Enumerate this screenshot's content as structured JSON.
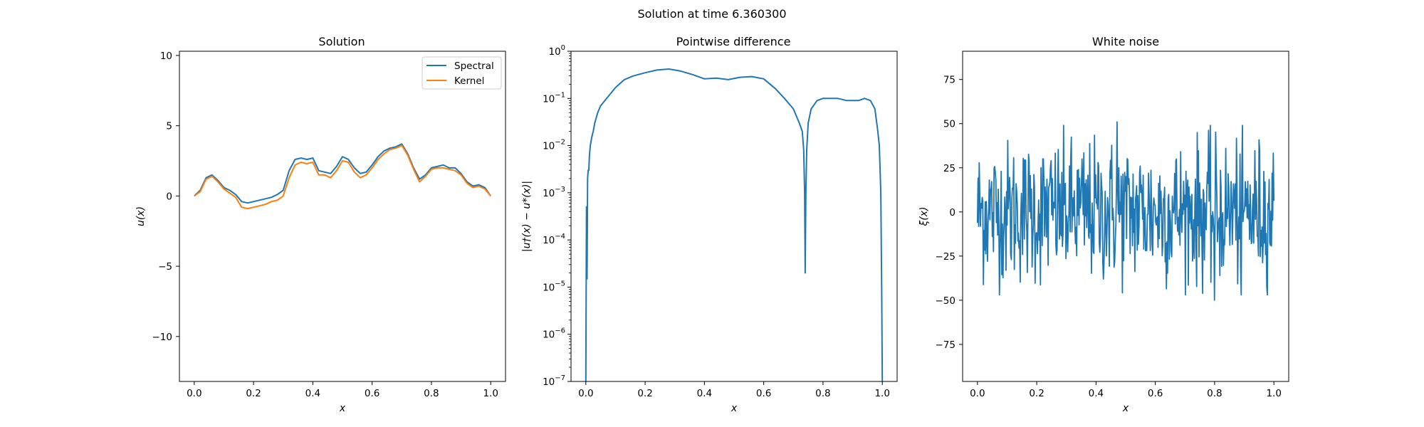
{
  "figure": {
    "suptitle": "Solution at time 6.360300"
  },
  "colors": {
    "spectral": "#1f77b4",
    "kernel": "#ff7f0e",
    "noise": "#1f77b4",
    "difference": "#1f77b4"
  },
  "chart_data": [
    {
      "type": "line",
      "title": "Solution",
      "xlabel": "x",
      "ylabel": "u(x)",
      "xlim": [
        -0.05,
        1.05
      ],
      "ylim": [
        -13.2,
        10.3
      ],
      "xticks": [
        "0.0",
        "0.2",
        "0.4",
        "0.6",
        "0.8",
        "1.0"
      ],
      "yticks": [
        "10",
        "5",
        "0",
        "−5",
        "−10"
      ],
      "legend": {
        "placement": "top-right",
        "entries": [
          "Spectral",
          "Kernel"
        ]
      },
      "series": [
        {
          "name": "Spectral",
          "x": [
            0.0,
            0.02,
            0.04,
            0.06,
            0.08,
            0.1,
            0.12,
            0.14,
            0.16,
            0.18,
            0.2,
            0.22,
            0.24,
            0.26,
            0.28,
            0.3,
            0.32,
            0.34,
            0.36,
            0.38,
            0.4,
            0.42,
            0.44,
            0.46,
            0.48,
            0.5,
            0.52,
            0.54,
            0.56,
            0.58,
            0.6,
            0.62,
            0.64,
            0.66,
            0.68,
            0.7,
            0.72,
            0.74,
            0.76,
            0.78,
            0.8,
            0.82,
            0.84,
            0.86,
            0.88,
            0.9,
            0.92,
            0.94,
            0.96,
            0.98,
            1.0
          ],
          "y": [
            0.0,
            0.4,
            1.3,
            1.5,
            1.1,
            0.6,
            0.4,
            0.1,
            -0.4,
            -0.5,
            -0.4,
            -0.3,
            -0.2,
            -0.1,
            0.1,
            0.4,
            1.8,
            2.6,
            2.7,
            2.6,
            2.7,
            1.8,
            1.7,
            1.6,
            2.1,
            2.8,
            2.6,
            2.0,
            1.6,
            1.7,
            2.2,
            2.8,
            3.2,
            3.4,
            3.5,
            3.7,
            3.0,
            2.0,
            1.2,
            1.5,
            2.0,
            2.1,
            2.2,
            2.0,
            2.0,
            1.6,
            1.0,
            0.7,
            0.8,
            0.6,
            0.0
          ]
        },
        {
          "name": "Kernel",
          "x": [
            0.0,
            0.02,
            0.04,
            0.06,
            0.08,
            0.1,
            0.12,
            0.14,
            0.16,
            0.18,
            0.2,
            0.22,
            0.24,
            0.26,
            0.28,
            0.3,
            0.32,
            0.34,
            0.36,
            0.38,
            0.4,
            0.42,
            0.44,
            0.46,
            0.48,
            0.5,
            0.52,
            0.54,
            0.56,
            0.58,
            0.6,
            0.62,
            0.64,
            0.66,
            0.68,
            0.7,
            0.72,
            0.74,
            0.76,
            0.78,
            0.8,
            0.82,
            0.84,
            0.86,
            0.88,
            0.9,
            0.92,
            0.94,
            0.96,
            0.98,
            1.0
          ],
          "y": [
            0.0,
            0.3,
            1.2,
            1.4,
            1.0,
            0.5,
            0.2,
            -0.1,
            -0.8,
            -0.9,
            -0.8,
            -0.7,
            -0.6,
            -0.4,
            -0.3,
            0.0,
            1.3,
            2.2,
            2.4,
            2.3,
            2.4,
            1.5,
            1.5,
            1.3,
            1.8,
            2.5,
            2.4,
            1.7,
            1.3,
            1.5,
            2.0,
            2.6,
            3.0,
            3.3,
            3.4,
            3.6,
            2.9,
            1.9,
            1.0,
            1.4,
            1.9,
            2.0,
            2.0,
            1.9,
            1.8,
            1.5,
            0.9,
            0.6,
            0.7,
            0.5,
            0.0
          ]
        }
      ]
    },
    {
      "type": "line",
      "title": "Pointwise difference",
      "xlabel": "x",
      "ylabel": "|u†(x) − u*(x)|",
      "yscale": "log",
      "xlim": [
        -0.05,
        1.05
      ],
      "ylim": [
        1e-07,
        1
      ],
      "xticks": [
        "0.0",
        "0.2",
        "0.4",
        "0.6",
        "0.8",
        "1.0"
      ],
      "yticks": [
        "10^0",
        "10^-1",
        "10^-2",
        "10^-3",
        "10^-4",
        "10^-5",
        "10^-6",
        "10^-7"
      ],
      "series": [
        {
          "x": [
            0.0,
            0.002,
            0.004,
            0.006,
            0.008,
            0.01,
            0.012,
            0.015,
            0.02,
            0.025,
            0.03,
            0.04,
            0.05,
            0.07,
            0.1,
            0.13,
            0.16,
            0.2,
            0.24,
            0.28,
            0.32,
            0.36,
            0.4,
            0.44,
            0.48,
            0.52,
            0.56,
            0.6,
            0.64,
            0.67,
            0.7,
            0.72,
            0.73,
            0.735,
            0.738,
            0.74,
            0.742,
            0.745,
            0.75,
            0.76,
            0.78,
            0.8,
            0.82,
            0.85,
            0.88,
            0.9,
            0.92,
            0.94,
            0.96,
            0.975,
            0.985,
            0.99,
            0.995,
            0.998,
            1.0
          ],
          "y": [
            1e-07,
            0.0005,
            1.5e-05,
            0.002,
            0.003,
            0.003,
            0.006,
            0.01,
            0.015,
            0.02,
            0.03,
            0.05,
            0.07,
            0.1,
            0.17,
            0.25,
            0.3,
            0.35,
            0.4,
            0.42,
            0.38,
            0.32,
            0.26,
            0.27,
            0.25,
            0.28,
            0.29,
            0.26,
            0.16,
            0.1,
            0.06,
            0.03,
            0.02,
            0.008,
            0.001,
            2e-05,
            0.001,
            0.008,
            0.03,
            0.06,
            0.09,
            0.1,
            0.1,
            0.1,
            0.09,
            0.09,
            0.09,
            0.1,
            0.09,
            0.06,
            0.02,
            0.01,
            0.001,
            1e-05,
            1e-07
          ]
        }
      ]
    },
    {
      "type": "line",
      "title": "White noise",
      "xlabel": "x",
      "ylabel": "ξ(x)",
      "xlim": [
        -0.05,
        1.05
      ],
      "ylim": [
        -96,
        91
      ],
      "xticks": [
        "0.0",
        "0.2",
        "0.4",
        "0.6",
        "0.8",
        "1.0"
      ],
      "yticks": [
        "75",
        "50",
        "25",
        "0",
        "−25",
        "−50",
        "−75"
      ],
      "series": [
        {
          "n_points": 500,
          "y_range": [
            -50,
            61
          ],
          "notable": [
            {
              "x": 0.47,
              "y": 51
            },
            {
              "x": 0.89,
              "y": 61
            },
            {
              "x": 0.8,
              "y": -50
            },
            {
              "x": 0.89,
              "y": -47
            }
          ]
        }
      ]
    }
  ]
}
